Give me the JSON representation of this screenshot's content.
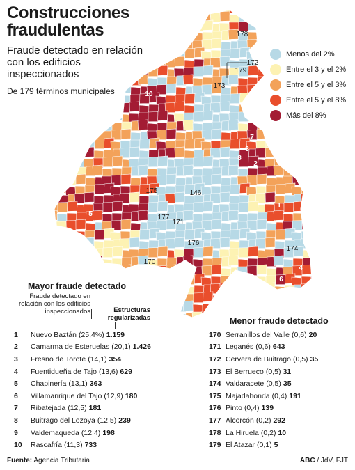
{
  "header": {
    "title": "Construcciones fraudulentas",
    "subtitle": "Fraude detectado en relación con los edificios inspeccionados",
    "count": "De 179 términos municipales"
  },
  "legend": [
    {
      "label": "Menos del 2%",
      "color": "#b7d9e6"
    },
    {
      "label": "Entre el 3 y el 2%",
      "color": "#fdf2b3"
    },
    {
      "label": "Entre el 5 y el 3%",
      "color": "#f3a25a"
    },
    {
      "label": "Entre el 5 y el 8%",
      "color": "#e94e2c"
    },
    {
      "label": "Más del 8%",
      "color": "#a31c34"
    }
  ],
  "map": {
    "labels": [
      "1",
      "2",
      "3",
      "4",
      "5",
      "6",
      "7",
      "8",
      "9",
      "10",
      "146",
      "170",
      "171",
      "172",
      "173",
      "174",
      "175",
      "176",
      "177",
      "178",
      "179"
    ]
  },
  "top": {
    "title": "Mayor fraude detectado",
    "col_pct": "Fraude detectado en relación con los edificios inspeccionados",
    "col_val": "Estructuras regularizadas",
    "rows": [
      {
        "rank": "1",
        "name": "Nuevo Baztán",
        "pct": "(25,4%)",
        "value": "1.159"
      },
      {
        "rank": "2",
        "name": "Camarma de Esteruelas",
        "pct": "(20,1)",
        "value": "1.426"
      },
      {
        "rank": "3",
        "name": "Fresno de Torote",
        "pct": "(14,1)",
        "value": "354"
      },
      {
        "rank": "4",
        "name": "Fuentidueña de Tajo",
        "pct": "(13,6)",
        "value": "629"
      },
      {
        "rank": "5",
        "name": "Chapinería",
        "pct": "(13,1)",
        "value": "363"
      },
      {
        "rank": "6",
        "name": "Villamanrique del Tajo",
        "pct": "(12,9)",
        "value": "180"
      },
      {
        "rank": "7",
        "name": "Ribatejada",
        "pct": "(12,5)",
        "value": "181"
      },
      {
        "rank": "8",
        "name": "Buitrago del Lozoya",
        "pct": "(12,5)",
        "value": "239"
      },
      {
        "rank": "9",
        "name": "Valdemaqueda",
        "pct": "(12,4)",
        "value": "198"
      },
      {
        "rank": "10",
        "name": "Rascafría",
        "pct": "(11,3)",
        "value": "733"
      }
    ]
  },
  "bottom": {
    "title": "Menor fraude detectado",
    "rows": [
      {
        "rank": "170",
        "name": "Serranillos del Valle",
        "pct": "(0,6)",
        "value": "20"
      },
      {
        "rank": "171",
        "name": "Leganés",
        "pct": "(0,6)",
        "value": "643"
      },
      {
        "rank": "172",
        "name": "Cervera de Buitrago",
        "pct": "(0,5)",
        "value": "35"
      },
      {
        "rank": "173",
        "name": "El Berrueco",
        "pct": "(0,5)",
        "value": "31"
      },
      {
        "rank": "174",
        "name": "Valdaracete",
        "pct": "(0,5)",
        "value": "35"
      },
      {
        "rank": "175",
        "name": "Majadahonda",
        "pct": "(0,4)",
        "value": "191"
      },
      {
        "rank": "176",
        "name": "Pinto",
        "pct": "(0,4)",
        "value": "139"
      },
      {
        "rank": "177",
        "name": "Alcorcón",
        "pct": "(0,2)",
        "value": "292"
      },
      {
        "rank": "178",
        "name": "La Hiruela",
        "pct": "(0,2)",
        "value": "10"
      },
      {
        "rank": "179",
        "name": "El Atazar",
        "pct": "(0,1)",
        "value": "5"
      }
    ]
  },
  "footer": {
    "source_label": "Fuente:",
    "source_value": "Agencia Tributaria",
    "credit_brand": "ABC",
    "credit_rest": "/ JdV, FJT"
  }
}
